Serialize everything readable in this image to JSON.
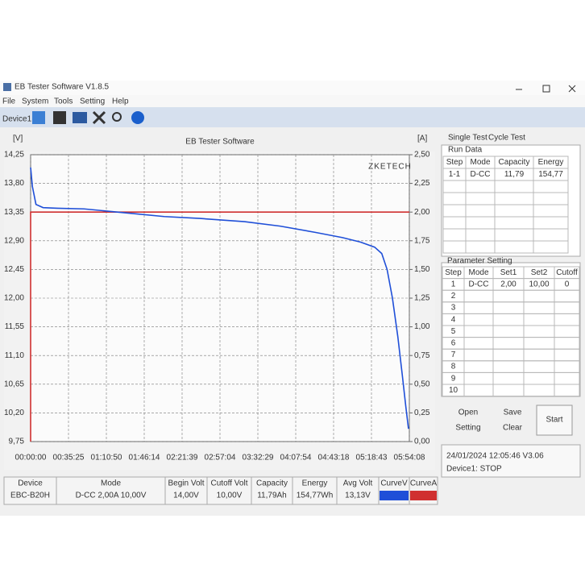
{
  "window": {
    "title": "EB Tester Software V1.8.5",
    "menu": [
      "File",
      "System",
      "Tools",
      "Setting",
      "Help"
    ],
    "device_tab": "Device1"
  },
  "chart_data": {
    "type": "line",
    "title": "EB Tester Software",
    "y_label": "[V]",
    "y2_label": "[A]",
    "watermark": "ZKETECH",
    "grid": true,
    "xlim": [
      0,
      21248
    ],
    "xticks": [
      {
        "value": 0,
        "label": "00:00:00"
      },
      {
        "value": 2125,
        "label": "00:35:25"
      },
      {
        "value": 4250,
        "label": "01:10:50"
      },
      {
        "value": 6374,
        "label": "01:46:14"
      },
      {
        "value": 8499,
        "label": "02:21:39"
      },
      {
        "value": 10624,
        "label": "02:57:04"
      },
      {
        "value": 12749,
        "label": "03:32:29"
      },
      {
        "value": 14874,
        "label": "04:07:54"
      },
      {
        "value": 16998,
        "label": "04:43:18"
      },
      {
        "value": 19123,
        "label": "05:18:43"
      },
      {
        "value": 21248,
        "label": "05:54:08"
      }
    ],
    "ylim": [
      9.75,
      14.25
    ],
    "yticks": [
      {
        "value": 9.75,
        "label": "9,75"
      },
      {
        "value": 10.2,
        "label": "10,20"
      },
      {
        "value": 10.65,
        "label": "10,65"
      },
      {
        "value": 11.1,
        "label": "11,10"
      },
      {
        "value": 11.55,
        "label": "11,55"
      },
      {
        "value": 12,
        "label": "12,00"
      },
      {
        "value": 12.45,
        "label": "12,45"
      },
      {
        "value": 12.9,
        "label": "12,90"
      },
      {
        "value": 13.35,
        "label": "13,35"
      },
      {
        "value": 13.8,
        "label": "13,80"
      },
      {
        "value": 14.25,
        "label": "14,25"
      }
    ],
    "y2lim": [
      0,
      2.5
    ],
    "y2ticks": [
      {
        "value": 0,
        "label": "0,00"
      },
      {
        "value": 0.25,
        "label": "0,25"
      },
      {
        "value": 0.5,
        "label": "0,50"
      },
      {
        "value": 0.75,
        "label": "0,75"
      },
      {
        "value": 1,
        "label": "1,00"
      },
      {
        "value": 1.25,
        "label": "1,25"
      },
      {
        "value": 1.5,
        "label": "1,50"
      },
      {
        "value": 1.75,
        "label": "1,75"
      },
      {
        "value": 2,
        "label": "2,00"
      },
      {
        "value": 2.25,
        "label": "2,25"
      },
      {
        "value": 2.5,
        "label": "2,50"
      }
    ],
    "series": [
      {
        "color": "#1f4fd8",
        "x": [
          0,
          100,
          300,
          700,
          1500,
          3000,
          4500,
          6000,
          7500,
          9500,
          12000,
          14000,
          16000,
          17500,
          18500,
          19300,
          19700,
          20000,
          20300,
          20600,
          20850,
          21050,
          21200
        ],
        "values": [
          14.05,
          13.75,
          13.47,
          13.42,
          13.41,
          13.4,
          13.36,
          13.32,
          13.28,
          13.25,
          13.2,
          13.13,
          13.03,
          12.95,
          12.88,
          12.8,
          12.7,
          12.45,
          12.0,
          11.4,
          10.8,
          10.3,
          9.95
        ]
      },
      {
        "color": "#d03030",
        "axis": "y2",
        "x": [
          0,
          0,
          21248
        ],
        "values": [
          0,
          2,
          2
        ]
      }
    ]
  },
  "side_panel": {
    "tabs": [
      "Single Test",
      "Cycle Test"
    ],
    "run_data": {
      "title": "Run Data",
      "headers": [
        "Step",
        "Mode",
        "Capacity",
        "Energy"
      ],
      "rows": [
        [
          "1-1",
          "D-CC",
          "11,79",
          "154,77"
        ]
      ]
    },
    "parameter_setting": {
      "title": "Parameter Setting",
      "headers": [
        "Step",
        "Mode",
        "Set1",
        "Set2",
        "Cutoff"
      ],
      "rows": [
        [
          "1",
          "D-CC",
          "2,00",
          "10,00",
          "0"
        ],
        [
          "2"
        ],
        [
          "3"
        ],
        [
          "4"
        ],
        [
          "5"
        ],
        [
          "6"
        ],
        [
          "7"
        ],
        [
          "8"
        ],
        [
          "9"
        ],
        [
          "10"
        ]
      ]
    },
    "buttons": [
      "Open",
      "Save",
      "Setting",
      "Clear",
      "Start"
    ]
  },
  "status": {
    "datetime": "24/01/2024 12:05:46 V3.06",
    "device": "Device1: STOP"
  },
  "summary": {
    "headers": [
      "Device",
      "Mode",
      "Begin Volt",
      "Cutoff Volt",
      "Capacity",
      "Energy",
      "Avg Volt",
      "CurveV",
      "CurveA"
    ],
    "values": [
      "EBC-B20H",
      "D-CC 2,00A 10,00V",
      "14,00V",
      "10,00V",
      "11,79Ah",
      "154,77Wh",
      "13,13V"
    ]
  }
}
